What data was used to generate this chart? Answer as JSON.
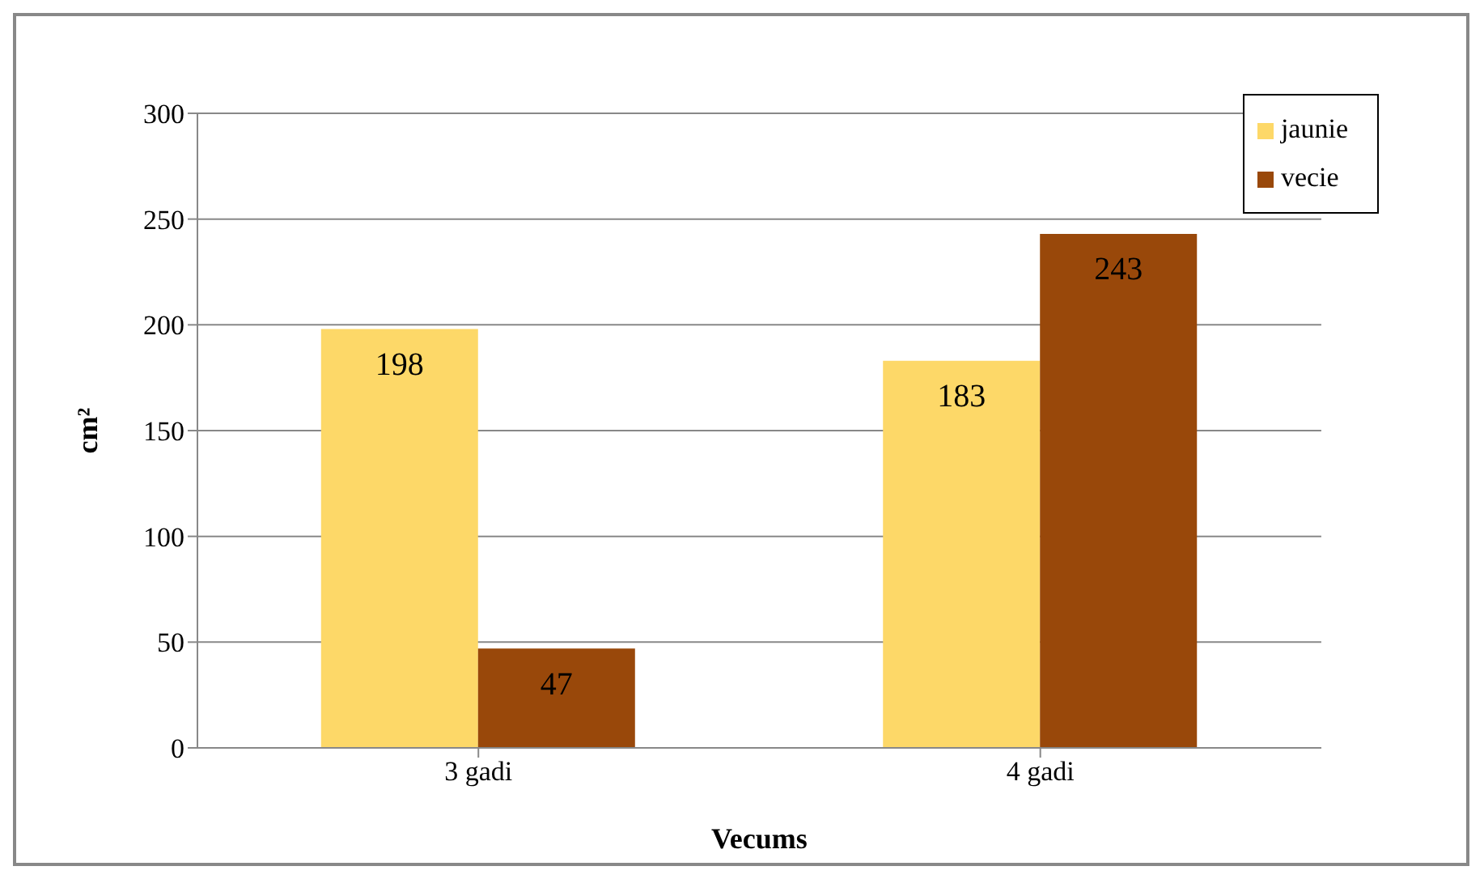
{
  "chart_data": {
    "type": "bar",
    "xlabel": "Vecums",
    "ylabel": "cm²",
    "categories": [
      "3 gadi",
      "4 gadi"
    ],
    "series": [
      {
        "name": "jaunie",
        "color": "#fdd868",
        "values": [
          198,
          183
        ]
      },
      {
        "name": "vecie",
        "color": "#99480a",
        "values": [
          47,
          243
        ]
      }
    ],
    "ylim": [
      0,
      300
    ],
    "yticks": [
      0,
      50,
      100,
      150,
      200,
      250,
      300
    ],
    "grid": "y",
    "legend": "top right",
    "data_labels": true
  }
}
